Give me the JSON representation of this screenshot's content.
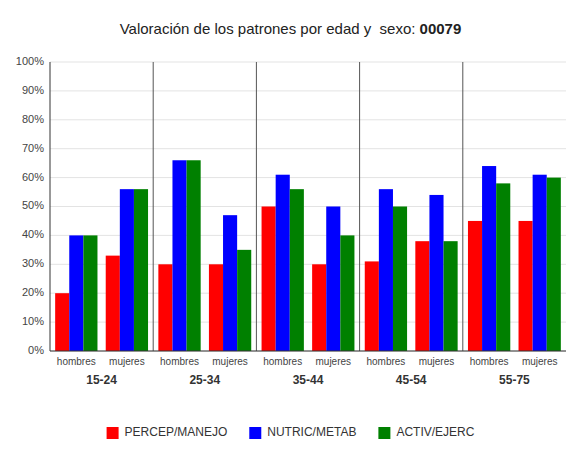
{
  "chart_data": {
    "type": "bar",
    "title": "Valoración de los patrones por edad y  sexo: 00079",
    "categories": [
      "hombres",
      "mujeres",
      "hombres",
      "mujeres",
      "hombres",
      "mujeres",
      "hombres",
      "mujeres",
      "hombres",
      "mujeres"
    ],
    "category_groups": [
      "15-24",
      "25-34",
      "35-44",
      "45-54",
      "55-75"
    ],
    "series": [
      {
        "name": "PERCEP/MANEJO",
        "color": "#FF0000",
        "values": [
          20,
          33,
          30,
          30,
          50,
          30,
          31,
          38,
          45,
          45
        ]
      },
      {
        "name": "NUTRIC/METAB",
        "color": "#0000FF",
        "values": [
          40,
          56,
          66,
          47,
          61,
          50,
          56,
          54,
          64,
          61
        ]
      },
      {
        "name": "ACTIV/EJERC",
        "color": "#008000",
        "values": [
          40,
          56,
          66,
          35,
          56,
          40,
          50,
          38,
          58,
          60
        ]
      }
    ],
    "ylim": [
      0,
      100
    ],
    "yticks": [
      {
        "value": 0,
        "label": "0%"
      },
      {
        "value": 10,
        "label": "10%"
      },
      {
        "value": 20,
        "label": "20%"
      },
      {
        "value": 30,
        "label": "30%"
      },
      {
        "value": 40,
        "label": "40%"
      },
      {
        "value": 50,
        "label": "50%"
      },
      {
        "value": 60,
        "label": "60%"
      },
      {
        "value": 70,
        "label": "70%"
      },
      {
        "value": 80,
        "label": "80%"
      },
      {
        "value": 90,
        "label": "90%"
      },
      {
        "value": 100,
        "label": "100%"
      }
    ],
    "grid": true,
    "legend": "bottom"
  }
}
